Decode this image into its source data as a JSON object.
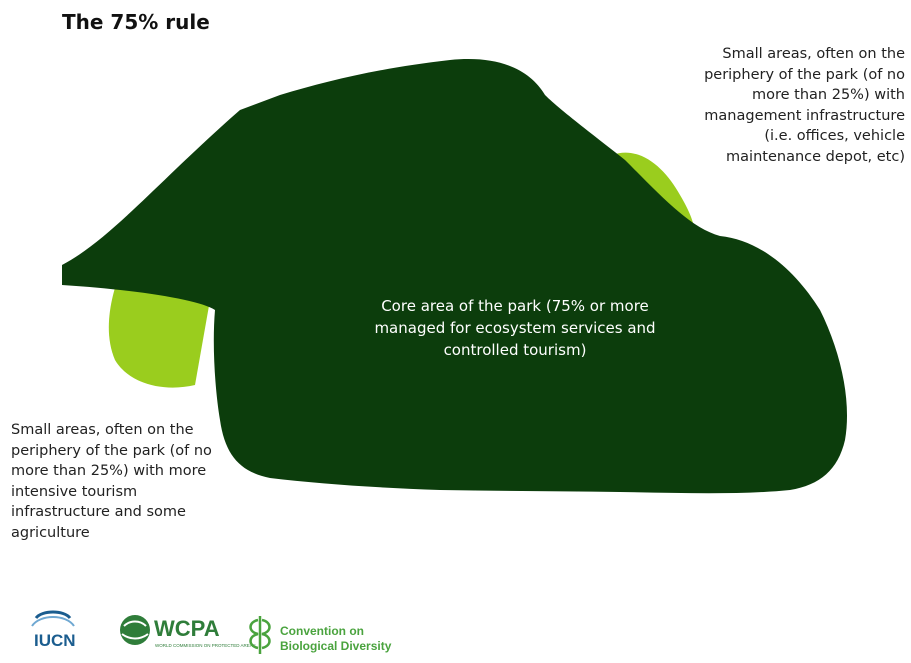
{
  "title": "The 75% rule",
  "core_label": "Core area of the park (75% or more managed for ecosystem services and controlled tourism)",
  "right_note": "Small areas, often on the periphery of the park (of no more than 25%) with management infrastructure (i.e. offices, vehicle maintenance depot, etc)",
  "left_note": "Small areas, often on the periphery of the park (of no more than 25%)  with more intensive tourism infrastructure and some agriculture",
  "logos": {
    "iucn": "IUCN",
    "wcpa": "WCPA",
    "wcpa_sub": "WORLD COMMISSION ON PROTECTED AREAS",
    "cbd_line1": "Convention on",
    "cbd_line2": "Biological Diversity"
  },
  "colors": {
    "core": "#0c3d0c",
    "periphery": "#9acd1e",
    "iucn_blue": "#1b5d8f",
    "wcpa_green": "#2f7d3a",
    "cbd_green": "#4aa33e"
  }
}
